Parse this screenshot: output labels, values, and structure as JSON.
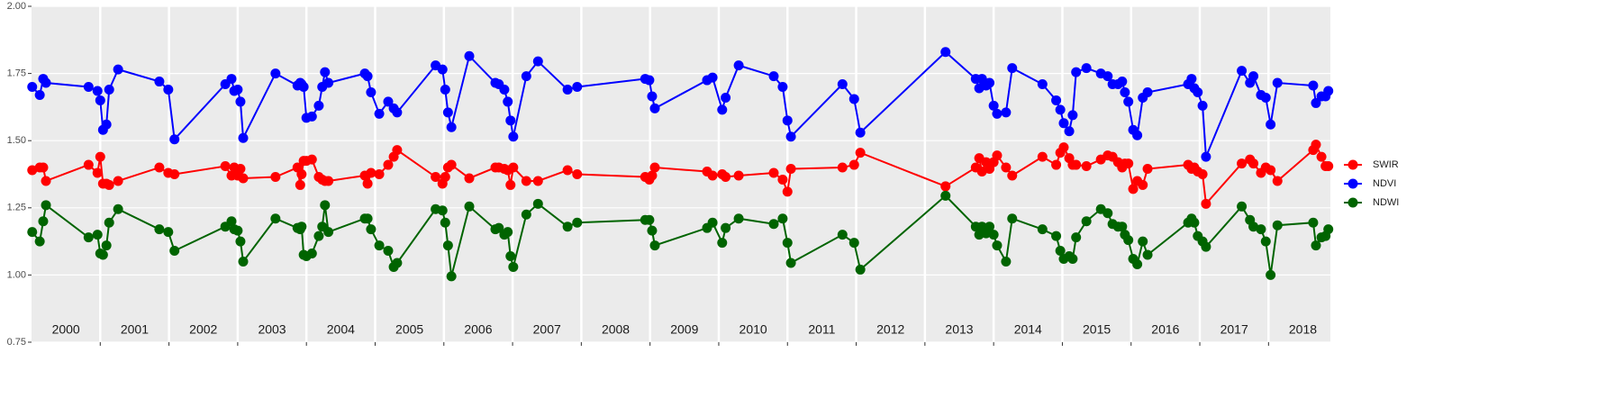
{
  "chart_data": {
    "type": "line",
    "year_labels": [
      "2000",
      "2001",
      "2002",
      "2003",
      "2004",
      "2005",
      "2006",
      "2007",
      "2008",
      "2009",
      "2010",
      "2011",
      "2012",
      "2013",
      "2014",
      "2015",
      "2016",
      "2017",
      "2018"
    ],
    "x": [
      2000.01,
      2000.12,
      2000.17,
      2000.21,
      2000.83,
      2000.96,
      2001.0,
      2001.04,
      2001.09,
      2001.13,
      2001.26,
      2001.86,
      2001.99,
      2002.08,
      2002.82,
      2002.91,
      2002.95,
      2003.0,
      2003.04,
      2003.08,
      2003.55,
      2003.87,
      2003.91,
      2003.93,
      2003.96,
      2004.0,
      2004.08,
      2004.18,
      2004.23,
      2004.27,
      2004.32,
      2004.85,
      2004.89,
      2004.94,
      2005.06,
      2005.19,
      2005.27,
      2005.32,
      2005.88,
      2005.98,
      2006.02,
      2006.06,
      2006.11,
      2006.37,
      2006.75,
      2006.8,
      2006.88,
      2006.93,
      2006.97,
      2007.01,
      2007.2,
      2007.37,
      2007.8,
      2007.94,
      2008.93,
      2008.99,
      2009.03,
      2009.07,
      2009.83,
      2009.91,
      2010.05,
      2010.1,
      2010.29,
      2010.8,
      2010.93,
      2011.0,
      2011.05,
      2011.8,
      2011.97,
      2012.06,
      2013.3,
      2013.74,
      2013.79,
      2013.83,
      2013.89,
      2013.94,
      2014.0,
      2014.05,
      2014.18,
      2014.27,
      2014.71,
      2014.91,
      2014.97,
      2015.02,
      2015.1,
      2015.15,
      2015.2,
      2015.35,
      2015.56,
      2015.66,
      2015.73,
      2015.81,
      2015.87,
      2015.91,
      2015.96,
      2016.03,
      2016.09,
      2016.17,
      2016.24,
      2016.83,
      2016.88,
      2016.92,
      2016.97,
      2017.04,
      2017.09,
      2017.61,
      2017.73,
      2017.78,
      2017.89,
      2017.96,
      2018.03,
      2018.13,
      2018.65,
      2018.69,
      2018.77,
      2018.83,
      2018.87
    ],
    "series": [
      {
        "name": "SWIR",
        "color": "#ff0000",
        "values": [
          1.39,
          1.4,
          1.4,
          1.35,
          1.41,
          1.38,
          1.44,
          1.34,
          1.34,
          1.335,
          1.35,
          1.4,
          1.38,
          1.375,
          1.405,
          1.37,
          1.4,
          1.37,
          1.395,
          1.36,
          1.365,
          1.4,
          1.335,
          1.375,
          1.425,
          1.425,
          1.43,
          1.365,
          1.355,
          1.35,
          1.35,
          1.37,
          1.34,
          1.38,
          1.375,
          1.41,
          1.44,
          1.465,
          1.365,
          1.34,
          1.365,
          1.4,
          1.41,
          1.36,
          1.4,
          1.4,
          1.395,
          1.39,
          1.335,
          1.4,
          1.35,
          1.35,
          1.39,
          1.375,
          1.365,
          1.355,
          1.37,
          1.4,
          1.385,
          1.37,
          1.375,
          1.365,
          1.37,
          1.38,
          1.355,
          1.31,
          1.395,
          1.4,
          1.41,
          1.455,
          1.33,
          1.4,
          1.435,
          1.385,
          1.42,
          1.395,
          1.42,
          1.445,
          1.4,
          1.37,
          1.44,
          1.41,
          1.455,
          1.475,
          1.435,
          1.41,
          1.41,
          1.405,
          1.43,
          1.445,
          1.44,
          1.42,
          1.4,
          1.415,
          1.415,
          1.32,
          1.35,
          1.335,
          1.395,
          1.41,
          1.395,
          1.4,
          1.385,
          1.375,
          1.265,
          1.415,
          1.43,
          1.415,
          1.38,
          1.4,
          1.39,
          1.35,
          1.465,
          1.485,
          1.44,
          1.405,
          1.405
        ]
      },
      {
        "name": "NDVI",
        "color": "#0000ff",
        "values": [
          1.7,
          1.67,
          1.73,
          1.715,
          1.7,
          1.685,
          1.65,
          1.54,
          1.56,
          1.69,
          1.765,
          1.72,
          1.69,
          1.505,
          1.71,
          1.73,
          1.685,
          1.69,
          1.645,
          1.51,
          1.75,
          1.705,
          1.715,
          1.71,
          1.7,
          1.585,
          1.59,
          1.63,
          1.7,
          1.755,
          1.715,
          1.75,
          1.74,
          1.68,
          1.6,
          1.645,
          1.62,
          1.605,
          1.78,
          1.765,
          1.69,
          1.605,
          1.55,
          1.815,
          1.715,
          1.71,
          1.69,
          1.645,
          1.575,
          1.515,
          1.74,
          1.795,
          1.69,
          1.7,
          1.73,
          1.725,
          1.665,
          1.62,
          1.725,
          1.735,
          1.615,
          1.66,
          1.78,
          1.74,
          1.7,
          1.575,
          1.515,
          1.71,
          1.655,
          1.53,
          1.83,
          1.73,
          1.695,
          1.73,
          1.705,
          1.715,
          1.63,
          1.6,
          1.605,
          1.77,
          1.71,
          1.65,
          1.615,
          1.565,
          1.535,
          1.595,
          1.755,
          1.77,
          1.75,
          1.74,
          1.71,
          1.71,
          1.72,
          1.68,
          1.645,
          1.54,
          1.52,
          1.66,
          1.68,
          1.71,
          1.73,
          1.695,
          1.68,
          1.63,
          1.44,
          1.76,
          1.715,
          1.74,
          1.67,
          1.66,
          1.56,
          1.715,
          1.705,
          1.64,
          1.665,
          1.665,
          1.685
        ]
      },
      {
        "name": "NDWI",
        "color": "#006400",
        "values": [
          1.16,
          1.125,
          1.2,
          1.26,
          1.14,
          1.15,
          1.08,
          1.075,
          1.11,
          1.195,
          1.245,
          1.17,
          1.16,
          1.09,
          1.18,
          1.2,
          1.17,
          1.165,
          1.125,
          1.05,
          1.21,
          1.175,
          1.17,
          1.18,
          1.075,
          1.07,
          1.08,
          1.145,
          1.18,
          1.26,
          1.16,
          1.21,
          1.21,
          1.17,
          1.11,
          1.09,
          1.03,
          1.045,
          1.245,
          1.24,
          1.195,
          1.11,
          0.995,
          1.255,
          1.17,
          1.175,
          1.15,
          1.16,
          1.07,
          1.03,
          1.225,
          1.265,
          1.18,
          1.195,
          1.205,
          1.205,
          1.165,
          1.11,
          1.175,
          1.195,
          1.12,
          1.175,
          1.21,
          1.19,
          1.21,
          1.12,
          1.045,
          1.15,
          1.12,
          1.02,
          1.295,
          1.18,
          1.15,
          1.18,
          1.155,
          1.18,
          1.15,
          1.11,
          1.05,
          1.21,
          1.17,
          1.145,
          1.09,
          1.06,
          1.07,
          1.06,
          1.14,
          1.2,
          1.245,
          1.23,
          1.19,
          1.18,
          1.18,
          1.15,
          1.13,
          1.06,
          1.04,
          1.125,
          1.075,
          1.195,
          1.21,
          1.195,
          1.145,
          1.125,
          1.105,
          1.255,
          1.205,
          1.18,
          1.17,
          1.125,
          1.0,
          1.185,
          1.195,
          1.11,
          1.14,
          1.145,
          1.17
        ]
      }
    ],
    "xlim": [
      2000.0,
      2018.9
    ],
    "xticks": [
      2001,
      2002,
      2003,
      2004,
      2005,
      2006,
      2007,
      2008,
      2009,
      2010,
      2011,
      2012,
      2013,
      2014,
      2015,
      2016,
      2017,
      2018
    ],
    "ylim": [
      0.75,
      2.0
    ],
    "yticks": [
      {
        "value": 0.75,
        "label": "0.75"
      },
      {
        "value": 1.0,
        "label": "1.00"
      },
      {
        "value": 1.25,
        "label": "1.25"
      },
      {
        "value": 1.5,
        "label": "1.50"
      },
      {
        "value": 1.75,
        "label": "1.75"
      },
      {
        "value": 2.0,
        "label": "2.00"
      }
    ],
    "grid": true,
    "legend": "right"
  }
}
